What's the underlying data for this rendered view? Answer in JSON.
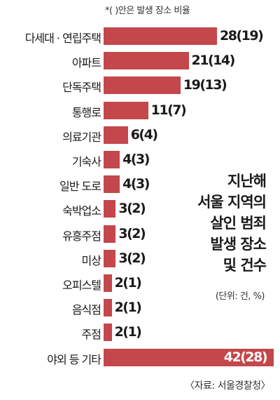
{
  "note": "*(  )안은 발생 장소 비율",
  "title_lines": [
    "지난해",
    "서울 지역의",
    "살인 범죄",
    "발생 장소",
    "및 건수"
  ],
  "unit": "(단위: 건, %)",
  "source": "〈자료: 서울경찰청〉",
  "colors": {
    "bar": "#c3474b",
    "text": "#1a1a1a"
  },
  "chart_data": {
    "type": "bar",
    "orientation": "horizontal",
    "categories": [
      "다세대 · 연립주택",
      "아파트",
      "단독주택",
      "통행로",
      "의료기관",
      "기숙사",
      "일반 도로",
      "숙박업소",
      "유흥주점",
      "미상",
      "오피스텔",
      "음식점",
      "주점",
      "야외 등 기타"
    ],
    "values": [
      28,
      21,
      19,
      11,
      6,
      4,
      4,
      3,
      3,
      3,
      2,
      2,
      2,
      42
    ],
    "percent": [
      19,
      14,
      13,
      7,
      4,
      3,
      3,
      2,
      2,
      2,
      1,
      1,
      1,
      28
    ],
    "value_labels": [
      "28(19)",
      "21(14)",
      "19(13)",
      "11(7)",
      "6(4)",
      "4(3)",
      "4(3)",
      "3(2)",
      "3(2)",
      "3(2)",
      "2(1)",
      "2(1)",
      "2(1)",
      "42(28)"
    ],
    "xlim": [
      0,
      42
    ]
  }
}
